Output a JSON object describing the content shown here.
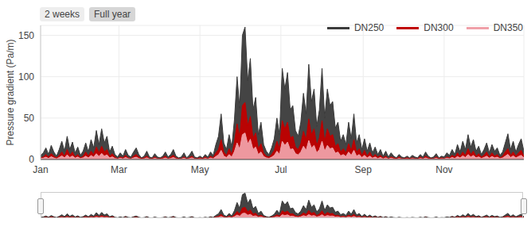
{
  "chart_data": {
    "type": "area",
    "y_label": "Pressure gradient (Pa/m)",
    "buttons": [
      "2 weeks",
      "Full year"
    ],
    "legend": "top right",
    "grid": true,
    "xlim": [
      0,
      364
    ],
    "xticks": [
      {
        "value": 0,
        "label": "Jan"
      },
      {
        "value": 59,
        "label": "Mar"
      },
      {
        "value": 120,
        "label": "May"
      },
      {
        "value": 181,
        "label": "Jul"
      },
      {
        "value": 243,
        "label": "Sep"
      },
      {
        "value": 304,
        "label": "Nov"
      }
    ],
    "ylim": [
      0,
      162
    ],
    "yticks": [
      0,
      50,
      100,
      150
    ],
    "x": [
      0,
      2,
      4,
      6,
      8,
      10,
      12,
      14,
      16,
      18,
      20,
      22,
      24,
      26,
      28,
      30,
      32,
      34,
      36,
      38,
      40,
      42,
      44,
      46,
      48,
      50,
      52,
      54,
      56,
      58,
      60,
      62,
      64,
      66,
      68,
      70,
      72,
      74,
      76,
      78,
      80,
      82,
      84,
      86,
      88,
      90,
      92,
      94,
      96,
      98,
      100,
      102,
      104,
      106,
      108,
      110,
      112,
      114,
      116,
      118,
      120,
      122,
      124,
      126,
      128,
      130,
      132,
      134,
      136,
      138,
      140,
      142,
      144,
      146,
      148,
      150,
      152,
      154,
      156,
      158,
      160,
      162,
      164,
      166,
      168,
      170,
      172,
      174,
      176,
      178,
      180,
      182,
      184,
      186,
      188,
      190,
      192,
      194,
      196,
      198,
      200,
      202,
      204,
      206,
      208,
      210,
      212,
      214,
      216,
      218,
      220,
      222,
      224,
      226,
      228,
      230,
      232,
      234,
      236,
      238,
      240,
      242,
      244,
      246,
      248,
      250,
      252,
      254,
      256,
      258,
      260,
      262,
      264,
      266,
      268,
      270,
      272,
      274,
      276,
      278,
      280,
      282,
      284,
      286,
      288,
      290,
      292,
      294,
      296,
      298,
      300,
      302,
      304,
      306,
      308,
      310,
      312,
      314,
      316,
      318,
      320,
      322,
      324,
      326,
      328,
      330,
      332,
      334,
      336,
      338,
      340,
      342,
      344,
      346,
      348,
      350,
      352,
      354,
      356,
      358,
      360,
      362,
      364
    ],
    "series": [
      {
        "name": "DN250",
        "color": "#3a3a3a",
        "values": [
          5,
          8,
          14,
          6,
          17,
          9,
          4,
          12,
          22,
          10,
          28,
          12,
          21,
          8,
          15,
          5,
          10,
          20,
          9,
          24,
          14,
          35,
          18,
          37,
          20,
          28,
          9,
          16,
          6,
          3,
          8,
          4,
          12,
          5,
          3,
          9,
          14,
          6,
          2,
          4,
          10,
          3,
          2,
          7,
          3,
          2,
          4,
          9,
          3,
          6,
          12,
          4,
          2,
          3,
          8,
          2,
          5,
          10,
          3,
          2,
          4,
          2,
          6,
          3,
          9,
          5,
          18,
          28,
          55,
          20,
          12,
          30,
          15,
          48,
          100,
          62,
          150,
          160,
          95,
          122,
          60,
          75,
          30,
          45,
          18,
          10,
          6,
          14,
          25,
          50,
          30,
          110,
          85,
          105,
          60,
          65,
          35,
          28,
          45,
          80,
          55,
          115,
          70,
          85,
          40,
          60,
          110,
          50,
          85,
          65,
          70,
          38,
          45,
          22,
          30,
          18,
          45,
          25,
          55,
          20,
          30,
          12,
          25,
          10,
          20,
          8,
          15,
          6,
          12,
          4,
          10,
          3,
          8,
          4,
          2,
          6,
          3,
          2,
          4,
          2,
          5,
          3,
          2,
          6,
          3,
          9,
          4,
          2,
          3,
          7,
          2,
          4,
          3,
          8,
          5,
          12,
          6,
          18,
          9,
          22,
          12,
          30,
          15,
          24,
          10,
          16,
          6,
          12,
          20,
          8,
          18,
          10,
          14,
          5,
          9,
          20,
          31,
          12,
          22,
          9,
          18,
          25,
          10
        ]
      },
      {
        "name": "DN300",
        "color": "#c00000",
        "values": [
          2,
          3,
          6,
          3,
          7,
          4,
          2,
          5,
          9,
          4,
          12,
          5,
          9,
          3,
          6,
          2,
          4,
          9,
          4,
          10,
          6,
          15,
          8,
          16,
          9,
          12,
          4,
          7,
          3,
          1,
          3,
          2,
          5,
          2,
          1,
          4,
          6,
          3,
          1,
          2,
          4,
          1,
          1,
          3,
          1,
          1,
          2,
          4,
          1,
          3,
          5,
          2,
          1,
          1,
          3,
          1,
          2,
          4,
          1,
          1,
          2,
          1,
          3,
          1,
          4,
          2,
          8,
          12,
          24,
          9,
          5,
          13,
          6,
          21,
          43,
          27,
          65,
          69,
          41,
          52,
          26,
          32,
          13,
          19,
          8,
          4,
          3,
          6,
          11,
          22,
          13,
          47,
          37,
          45,
          26,
          28,
          15,
          12,
          19,
          34,
          24,
          49,
          30,
          37,
          17,
          26,
          47,
          22,
          37,
          28,
          30,
          16,
          19,
          9,
          13,
          8,
          19,
          11,
          24,
          9,
          13,
          5,
          11,
          4,
          9,
          3,
          6,
          3,
          5,
          2,
          4,
          1,
          3,
          2,
          1,
          3,
          1,
          1,
          2,
          1,
          2,
          1,
          1,
          3,
          1,
          4,
          2,
          1,
          1,
          3,
          1,
          2,
          1,
          3,
          2,
          5,
          3,
          8,
          4,
          9,
          5,
          13,
          6,
          10,
          4,
          7,
          3,
          5,
          9,
          3,
          8,
          4,
          6,
          2,
          4,
          9,
          13,
          5,
          9,
          4,
          8,
          11,
          4
        ]
      },
      {
        "name": "DN350",
        "color": "#f0a0a8",
        "values": [
          1,
          1.6,
          2.8,
          1.2,
          3.4,
          1.8,
          0.8,
          2.4,
          4.4,
          2,
          5.6,
          2.4,
          4.2,
          1.6,
          3,
          1,
          2,
          4,
          1.8,
          4.8,
          2.8,
          7,
          3.6,
          7.4,
          4,
          5.6,
          1.8,
          3.2,
          1.2,
          0.6,
          1.6,
          0.8,
          2.4,
          1,
          0.6,
          1.8,
          2.8,
          1.2,
          0.4,
          0.8,
          2,
          0.6,
          0.4,
          1.4,
          0.6,
          0.4,
          0.8,
          1.8,
          0.6,
          1.2,
          2.4,
          0.8,
          0.4,
          0.6,
          1.6,
          0.4,
          1,
          2,
          0.6,
          0.4,
          0.8,
          0.4,
          1.2,
          0.6,
          1.8,
          1,
          3.6,
          5.6,
          11,
          4,
          2.4,
          6,
          3,
          9.6,
          20,
          12.4,
          30,
          32,
          19,
          24.4,
          12,
          15,
          6,
          9,
          3.6,
          2,
          1.2,
          2.8,
          5,
          10,
          6,
          22,
          17,
          21,
          12,
          13,
          7,
          5.6,
          9,
          16,
          11,
          23,
          14,
          17,
          8,
          12,
          22,
          10,
          17,
          13,
          14,
          7.6,
          9,
          4.4,
          6,
          3.6,
          9,
          5,
          11,
          4,
          6,
          2.4,
          5,
          2,
          4,
          1.6,
          3,
          1.2,
          2.4,
          0.8,
          2,
          0.6,
          1.6,
          0.8,
          0.4,
          1.2,
          0.6,
          0.4,
          0.8,
          0.4,
          1,
          0.6,
          0.4,
          1.2,
          0.6,
          1.8,
          0.8,
          0.4,
          0.6,
          1.4,
          0.4,
          0.8,
          0.6,
          1.6,
          1,
          2.4,
          1.2,
          3.6,
          1.8,
          4.4,
          2.4,
          6,
          3,
          4.8,
          2,
          3.2,
          1.2,
          2.4,
          4,
          1.6,
          3.6,
          2,
          2.8,
          1,
          1.8,
          4,
          6.2,
          2.4,
          4.4,
          1.8,
          3.6,
          5,
          2
        ]
      }
    ]
  }
}
